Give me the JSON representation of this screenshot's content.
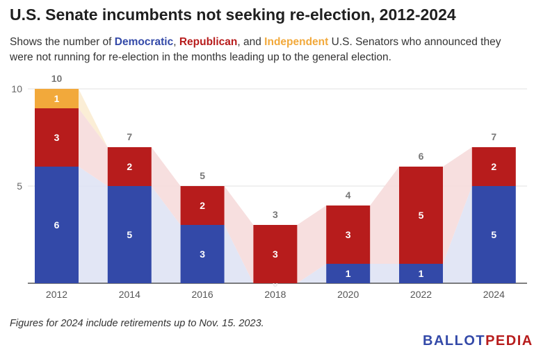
{
  "header": {
    "title": "U.S. Senate incumbents not seeking re-election, 2012-2024",
    "subtitle_parts": {
      "prefix": "Shows the number of ",
      "dem": "Democratic",
      "sep1": ", ",
      "rep": "Republican",
      "sep2": ", and ",
      "ind": "Independent",
      "suffix": " U.S. Senators who announced they were not running for re-election in the months leading up to the general election."
    }
  },
  "footer": {
    "note": "Figures for 2024 include retirements up to Nov. 15. 2023.",
    "logo_part1": "BALLOT",
    "logo_part2": "PEDIA"
  },
  "colors": {
    "democratic": "#3349a8",
    "republican": "#b71c1c",
    "independent": "#f2a93b",
    "dem_band": "#dfe3f4",
    "rep_band": "#f6dcdc",
    "ind_band": "#fbecd2"
  },
  "chart_data": {
    "type": "bar",
    "stacked": true,
    "categories": [
      "2012",
      "2014",
      "2016",
      "2018",
      "2020",
      "2022",
      "2024"
    ],
    "series": [
      {
        "name": "Democratic",
        "values": [
          6,
          5,
          3,
          0,
          1,
          1,
          5
        ]
      },
      {
        "name": "Republican",
        "values": [
          3,
          2,
          2,
          3,
          3,
          5,
          2
        ]
      },
      {
        "name": "Independent",
        "values": [
          1,
          0,
          0,
          0,
          0,
          0,
          0
        ]
      }
    ],
    "totals": [
      10,
      7,
      5,
      3,
      4,
      6,
      7
    ],
    "ylim": [
      0,
      10
    ],
    "yticks": [
      5,
      10
    ],
    "grid": true
  }
}
